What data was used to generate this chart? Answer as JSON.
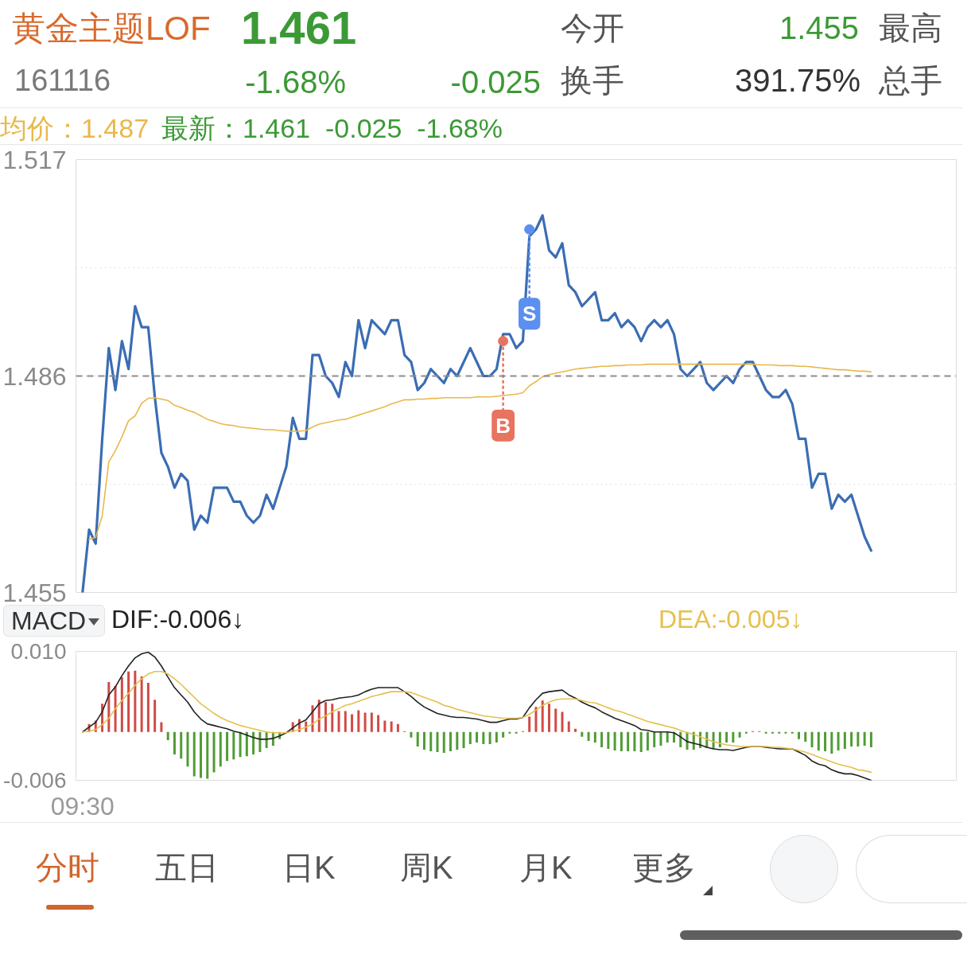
{
  "chart_data": [
    {
      "type": "line",
      "title": "黄金主题LOF",
      "subtitle": "161116",
      "categories": [
        null,
        null,
        null,
        null,
        null,
        null,
        null,
        null,
        null,
        null,
        null,
        null,
        null,
        null,
        null,
        null,
        null,
        null,
        null,
        null,
        null,
        null,
        null,
        null,
        null,
        null,
        null,
        null,
        null,
        null,
        null,
        null,
        null,
        null,
        null,
        null,
        null,
        null,
        null,
        null,
        null,
        null,
        null,
        null,
        null,
        null,
        null,
        null,
        null,
        null,
        null,
        null,
        null,
        null,
        null,
        null,
        null,
        null,
        null,
        null,
        null,
        null,
        null,
        null,
        null,
        null,
        null,
        null,
        null,
        null,
        null,
        null,
        null,
        null,
        null,
        null,
        null,
        null,
        null,
        null,
        null,
        null,
        null,
        null,
        null,
        null,
        null,
        null,
        null,
        null,
        null,
        null,
        null,
        null,
        null,
        null,
        null,
        null,
        null,
        null,
        null,
        null,
        null,
        null,
        null,
        null,
        null,
        null,
        null,
        null,
        null,
        null,
        null,
        null,
        null,
        null,
        null,
        null,
        null,
        null,
        null
      ],
      "series": [
        {
          "color": "#3b6db3",
          "values": [
            1.455,
            1.464,
            1.462,
            1.477,
            1.49,
            1.484,
            1.491,
            1.487,
            1.496,
            1.493,
            1.493,
            1.483,
            1.475,
            1.473,
            1.47,
            1.472,
            1.471,
            1.464,
            1.466,
            1.465,
            1.47,
            1.47,
            1.47,
            1.468,
            1.468,
            1.466,
            1.465,
            1.466,
            1.469,
            1.467,
            1.47,
            1.473,
            1.48,
            1.477,
            1.477,
            1.489,
            1.489,
            1.486,
            1.485,
            1.483,
            1.488,
            1.486,
            1.494,
            1.49,
            1.494,
            1.493,
            1.492,
            1.494,
            1.494,
            1.489,
            1.488,
            1.484,
            1.485,
            1.487,
            1.486,
            1.485,
            1.487,
            1.486,
            1.488,
            1.49,
            1.488,
            1.486,
            1.486,
            1.487,
            1.492,
            1.492,
            1.49,
            1.491,
            1.506,
            1.507,
            1.509,
            1.504,
            1.503,
            1.505,
            1.499,
            1.498,
            1.496,
            1.497,
            1.498,
            1.494,
            1.494,
            1.495,
            1.493,
            1.494,
            1.493,
            1.491,
            1.493,
            1.494,
            1.493,
            1.494,
            1.492,
            1.487,
            1.486,
            1.487,
            1.488,
            1.485,
            1.484,
            1.485,
            1.486,
            1.485,
            1.487,
            1.488,
            1.488,
            1.486,
            1.484,
            1.483,
            1.483,
            1.484,
            1.482,
            1.477,
            1.477,
            1.47,
            1.472,
            1.472,
            1.467,
            1.469,
            1.468,
            1.469,
            1.466,
            1.463,
            1.461
          ]
        },
        {
          "name": "均价：1.487",
          "color": "#e9b84b",
          "values": [
            null,
            1.4626,
            1.4629,
            1.466,
            1.4737,
            1.4753,
            1.4773,
            1.4796,
            1.4803,
            1.4821,
            1.4828,
            1.4829,
            1.4827,
            1.4825,
            1.4818,
            1.4815,
            1.4811,
            1.4808,
            1.4803,
            1.4798,
            1.4795,
            1.4792,
            1.479,
            1.4789,
            1.4787,
            1.4786,
            1.4785,
            1.4784,
            1.4783,
            1.4783,
            1.4782,
            1.4781,
            1.4781,
            1.4781,
            1.4782,
            1.4787,
            1.4791,
            1.4793,
            1.4795,
            1.4797,
            1.4798,
            1.4801,
            1.4804,
            1.4807,
            1.481,
            1.4813,
            1.4816,
            1.482,
            1.4823,
            1.4826,
            1.4826,
            1.4827,
            1.4827,
            1.4828,
            1.4828,
            1.4829,
            1.4829,
            1.4829,
            1.4829,
            1.4829,
            1.483,
            1.483,
            1.483,
            1.4831,
            1.4832,
            1.4833,
            1.4834,
            1.4836,
            1.4846,
            1.4852,
            1.4859,
            1.4862,
            1.4864,
            1.4866,
            1.4868,
            1.487,
            1.4871,
            1.4872,
            1.4873,
            1.4874,
            1.4874,
            1.4875,
            1.4875,
            1.4876,
            1.4876,
            1.4876,
            1.4877,
            1.4877,
            1.4877,
            1.4877,
            1.4877,
            1.4877,
            1.4877,
            1.4877,
            1.4877,
            1.4877,
            1.4877,
            1.4877,
            1.4877,
            1.4877,
            1.4877,
            1.4877,
            1.4877,
            1.4876,
            1.4876,
            1.4876,
            1.4875,
            1.4875,
            1.4875,
            1.4874,
            1.4874,
            1.4873,
            1.4872,
            1.4871,
            1.487,
            1.4869,
            1.4869,
            1.4868,
            1.4867,
            1.4867,
            1.4866
          ]
        },
        {
          "type": "scatter",
          "name": "B",
          "color": "#e8735f",
          "marker": "circle",
          "values": [
            null,
            null,
            null,
            null,
            null,
            null,
            null,
            null,
            null,
            null,
            null,
            null,
            null,
            null,
            null,
            null,
            null,
            null,
            null,
            null,
            null,
            null,
            null,
            null,
            null,
            null,
            null,
            null,
            null,
            null,
            null,
            null,
            null,
            null,
            null,
            null,
            null,
            null,
            null,
            null,
            null,
            null,
            null,
            null,
            null,
            null,
            null,
            null,
            null,
            null,
            null,
            null,
            null,
            null,
            null,
            null,
            null,
            null,
            null,
            null,
            null,
            null,
            null,
            null,
            1.491,
            null,
            null,
            null,
            null,
            null,
            null,
            null,
            null,
            null,
            null,
            null,
            null,
            null,
            null,
            null,
            null,
            null,
            null,
            null,
            null,
            null,
            null,
            null,
            null,
            null,
            null,
            null,
            null,
            null,
            null,
            null,
            null,
            null,
            null,
            null,
            null,
            null,
            null,
            null,
            null,
            null,
            null,
            null,
            null,
            null,
            null,
            null,
            null,
            null,
            null,
            null,
            null,
            null,
            null,
            null,
            null
          ]
        },
        {
          "type": "scatter",
          "name": "S",
          "color": "#5b8ff0",
          "marker": "circle",
          "values": [
            null,
            null,
            null,
            null,
            null,
            null,
            null,
            null,
            null,
            null,
            null,
            null,
            null,
            null,
            null,
            null,
            null,
            null,
            null,
            null,
            null,
            null,
            null,
            null,
            null,
            null,
            null,
            null,
            null,
            null,
            null,
            null,
            null,
            null,
            null,
            null,
            null,
            null,
            null,
            null,
            null,
            null,
            null,
            null,
            null,
            null,
            null,
            null,
            null,
            null,
            null,
            null,
            null,
            null,
            null,
            null,
            null,
            null,
            null,
            null,
            null,
            null,
            null,
            null,
            null,
            null,
            null,
            null,
            1.507,
            null,
            null,
            null,
            null,
            null,
            null,
            null,
            null,
            null,
            null,
            null,
            null,
            null,
            null,
            null,
            null,
            null,
            null,
            null,
            null,
            null,
            null,
            null,
            null,
            null,
            null,
            null,
            null,
            null,
            null,
            null,
            null,
            null,
            null,
            null,
            null,
            null,
            null,
            null,
            null,
            null,
            null,
            null,
            null,
            null,
            null,
            null,
            null,
            null,
            null,
            null,
            null
          ]
        }
      ],
      "ylim": [
        1.455,
        1.517
      ],
      "yticks": [
        1.517,
        {
          "value": 1.5015,
          "label": null
        },
        1.486,
        {
          "value": 1.4705,
          "label": null
        },
        1.455
      ],
      "grid": "y",
      "ref_lines": [
        {
          "axis": "y",
          "value": 1.486,
          "color": "#8c8c8c",
          "line_style": "dashed"
        }
      ],
      "legend": "top",
      "tick_labels": "y",
      "annotations": [
        "1.461",
        "-1.68%",
        "-0.025",
        "今开",
        "1.455",
        "最高",
        "换手",
        "391.75%",
        "总手",
        "最新：1.461  -0.025  -1.68%"
      ]
    },
    {
      "type": "bar",
      "title": "MACD",
      "categories": [
        "09:30",
        null,
        null,
        null,
        null,
        null,
        null,
        null,
        null,
        null,
        null,
        null,
        null,
        null,
        null,
        null,
        null,
        null,
        null,
        null,
        null,
        null,
        null,
        null,
        null,
        null,
        null,
        null,
        null,
        null,
        null,
        null,
        null,
        null,
        null,
        null,
        null,
        null,
        null,
        null,
        null,
        null,
        null,
        null,
        null,
        null,
        null,
        null,
        null,
        null,
        null,
        null,
        null,
        null,
        null,
        null,
        null,
        null,
        null,
        null,
        null,
        null,
        null,
        null,
        null,
        null,
        null,
        null,
        null,
        null,
        null,
        null,
        null,
        null,
        null,
        null,
        null,
        null,
        null,
        null,
        null,
        null,
        null,
        null,
        null,
        null,
        null,
        null,
        null,
        null,
        null,
        null,
        null,
        null,
        null,
        null,
        null,
        null,
        null,
        null,
        null,
        null,
        null,
        null,
        null,
        null,
        null,
        null,
        null,
        null,
        null,
        null,
        null,
        null,
        null,
        null,
        null,
        null,
        null,
        null,
        null
      ],
      "series": [
        {
          "colors": [
            "#d04a45",
            "#d04a45",
            "#d04a45",
            "#d04a45",
            "#d04a45",
            "#d04a45",
            "#d04a45",
            "#d04a45",
            "#d04a45",
            "#d04a45",
            "#d04a45",
            "#d04a45",
            "#d04a45",
            "#4f9c34",
            "#4f9c34",
            "#4f9c34",
            "#4f9c34",
            "#4f9c34",
            "#4f9c34",
            "#4f9c34",
            "#4f9c34",
            "#4f9c34",
            "#4f9c34",
            "#4f9c34",
            "#4f9c34",
            "#4f9c34",
            "#4f9c34",
            "#4f9c34",
            "#4f9c34",
            "#4f9c34",
            "#4f9c34",
            "#d04a45",
            "#d04a45",
            "#d04a45",
            "#d04a45",
            "#d04a45",
            "#d04a45",
            "#d04a45",
            "#d04a45",
            "#d04a45",
            "#d04a45",
            "#d04a45",
            "#d04a45",
            "#d04a45",
            "#d04a45",
            "#d04a45",
            "#d04a45",
            "#d04a45",
            "#d04a45",
            "#d04a45",
            "#4f9c34",
            "#4f9c34",
            "#4f9c34",
            "#4f9c34",
            "#4f9c34",
            "#4f9c34",
            "#4f9c34",
            "#4f9c34",
            "#4f9c34",
            "#4f9c34",
            "#4f9c34",
            "#4f9c34",
            "#4f9c34",
            "#4f9c34",
            "#4f9c34",
            "#4f9c34",
            "#4f9c34",
            "#d04a45",
            "#d04a45",
            "#d04a45",
            "#d04a45",
            "#d04a45",
            "#d04a45",
            "#d04a45",
            "#d04a45",
            "#d04a45",
            "#4f9c34",
            "#4f9c34",
            "#4f9c34",
            "#4f9c34",
            "#4f9c34",
            "#4f9c34",
            "#4f9c34",
            "#4f9c34",
            "#4f9c34",
            "#4f9c34",
            "#4f9c34",
            "#4f9c34",
            "#4f9c34",
            "#4f9c34",
            "#4f9c34",
            "#4f9c34",
            "#4f9c34",
            "#4f9c34",
            "#4f9c34",
            "#4f9c34",
            "#4f9c34",
            "#4f9c34",
            "#4f9c34",
            "#4f9c34",
            "#4f9c34",
            "#4f9c34",
            "#d04a45",
            "#d04a45",
            "#4f9c34",
            "#4f9c34",
            "#4f9c34",
            "#4f9c34",
            "#4f9c34",
            "#4f9c34",
            "#4f9c34",
            "#4f9c34",
            "#4f9c34",
            "#4f9c34",
            "#4f9c34",
            "#4f9c34",
            "#4f9c34",
            "#4f9c34",
            "#4f9c34",
            "#4f9c34",
            "#4f9c34"
          ],
          "values": [
            null,
            0.001,
            0.0014,
            0.0035,
            0.0062,
            0.0057,
            0.0068,
            0.0075,
            0.0076,
            0.0069,
            0.0061,
            0.004,
            0.0012,
            -0.001,
            -0.0028,
            -0.0033,
            -0.0043,
            -0.0055,
            -0.0057,
            -0.0058,
            -0.005,
            -0.0043,
            -0.0036,
            -0.0034,
            -0.0031,
            -0.003,
            -0.0028,
            -0.0025,
            -0.002,
            -0.0017,
            -0.0009,
            null,
            0.0012,
            0.0016,
            0.0013,
            0.0033,
            0.004,
            0.0037,
            0.0035,
            0.0026,
            0.0026,
            0.0022,
            0.0027,
            0.0024,
            0.0024,
            0.0021,
            0.0014,
            0.0013,
            0.001,
            0.0001,
            -0.0007,
            -0.0018,
            -0.0022,
            -0.0024,
            -0.0025,
            -0.0026,
            -0.0024,
            -0.0022,
            -0.002,
            -0.0015,
            -0.0013,
            -0.0015,
            -0.0015,
            -0.0013,
            -0.0007,
            -0.0002,
            -0.0002,
            0.0001,
            0.0019,
            0.0031,
            0.0039,
            0.0035,
            0.0029,
            0.0025,
            0.0013,
            0.0004,
            -0.0006,
            -0.0011,
            -0.0013,
            -0.0019,
            -0.0021,
            -0.0023,
            -0.0024,
            -0.0024,
            -0.0024,
            -0.0025,
            -0.0023,
            -0.0019,
            -0.0017,
            -0.0013,
            -0.0013,
            -0.0019,
            -0.0022,
            -0.0022,
            -0.002,
            -0.002,
            -0.0021,
            -0.0019,
            -0.0013,
            -0.0013,
            -0.0007,
            -0.0002,
            0.0001,
            0.0001,
            -0.0002,
            -0.0002,
            -0.0002,
            -0.0002,
            -0.0002,
            -0.0009,
            -0.0012,
            -0.0019,
            -0.0023,
            -0.0024,
            -0.0027,
            -0.0023,
            -0.0021,
            -0.0018,
            -0.0018,
            -0.0017,
            -0.0019
          ]
        },
        {
          "type": "line",
          "name": "DIF:-0.006↓",
          "color": "#222222",
          "values": [
            0.0,
            0.0006,
            0.0012,
            0.0025,
            0.0046,
            0.0056,
            0.007,
            0.0082,
            0.0092,
            0.0097,
            0.0099,
            0.0093,
            0.0082,
            0.0068,
            0.0055,
            0.0046,
            0.0037,
            0.0025,
            0.0016,
            0.001,
            0.0008,
            0.0006,
            0.0004,
            0.0001,
            -0.0001,
            -0.0004,
            -0.0007,
            -0.0009,
            -0.0009,
            -0.0008,
            -0.0005,
            -0.0001,
            0.0005,
            0.0011,
            0.0015,
            0.0025,
            0.0035,
            0.0039,
            0.004,
            0.0042,
            0.0043,
            0.0044,
            0.0046,
            0.005,
            0.0053,
            0.0055,
            0.0055,
            0.0055,
            0.0055,
            0.005,
            0.0044,
            0.0037,
            0.0031,
            0.0027,
            0.0023,
            0.0021,
            0.0019,
            0.0018,
            0.0018,
            0.0017,
            0.0016,
            0.0014,
            0.0012,
            0.0012,
            0.0014,
            0.0016,
            0.0016,
            0.0018,
            0.003,
            0.004,
            0.0048,
            0.005,
            0.0051,
            0.0052,
            0.0046,
            0.0042,
            0.0037,
            0.0033,
            0.003,
            0.0025,
            0.0021,
            0.0017,
            0.0014,
            0.0011,
            0.0008,
            0.0003,
            0.0002,
            0.0,
            0.0,
            0.0,
            -0.0001,
            -0.0006,
            -0.0012,
            -0.0014,
            -0.0016,
            -0.0019,
            -0.0021,
            -0.0022,
            -0.0022,
            -0.0023,
            -0.0021,
            -0.0019,
            -0.0018,
            -0.0018,
            -0.0019,
            -0.002,
            -0.0021,
            -0.0021,
            -0.0021,
            -0.0025,
            -0.0029,
            -0.0036,
            -0.004,
            -0.0042,
            -0.0047,
            -0.005,
            -0.0052,
            -0.0052,
            -0.0054,
            -0.0057,
            -0.006
          ]
        },
        {
          "type": "line",
          "name": "DEA:-0.005↓",
          "color": "#e6c04e",
          "values": [
            0.0,
            0.0001,
            0.0003,
            0.0009,
            0.0017,
            0.0029,
            0.0039,
            0.0048,
            0.0058,
            0.0066,
            0.0072,
            0.0075,
            0.0075,
            0.0072,
            0.0066,
            0.0059,
            0.0051,
            0.0043,
            0.0035,
            0.0029,
            0.0023,
            0.0018,
            0.0014,
            0.0011,
            0.0008,
            0.0006,
            0.0004,
            0.0002,
            0.0,
            -0.0001,
            -0.0001,
            -0.0001,
            0.0001,
            0.0003,
            0.0006,
            0.001,
            0.0016,
            0.002,
            0.0025,
            0.0029,
            0.0033,
            0.0035,
            0.0038,
            0.0041,
            0.0044,
            0.0046,
            0.0048,
            0.005,
            0.005,
            0.005,
            0.0049,
            0.0046,
            0.0043,
            0.004,
            0.0037,
            0.0033,
            0.0031,
            0.0028,
            0.0026,
            0.0024,
            0.0022,
            0.002,
            0.0019,
            0.0018,
            0.0017,
            0.0017,
            0.0017,
            0.0018,
            0.0022,
            0.0027,
            0.0033,
            0.0037,
            0.004,
            0.0041,
            0.0041,
            0.0041,
            0.0039,
            0.0037,
            0.0036,
            0.0033,
            0.003,
            0.0027,
            0.0025,
            0.0022,
            0.0019,
            0.0016,
            0.0013,
            0.0011,
            0.0009,
            0.0007,
            0.0005,
            0.0002,
            -0.0001,
            -0.0003,
            -0.0006,
            -0.0009,
            -0.0012,
            -0.0014,
            -0.0016,
            -0.0017,
            -0.0018,
            -0.0018,
            -0.0018,
            -0.0018,
            -0.0018,
            -0.0019,
            -0.0019,
            -0.002,
            -0.0021,
            -0.0023,
            -0.0025,
            -0.0028,
            -0.0031,
            -0.0034,
            -0.0037,
            -0.004,
            -0.0042,
            -0.0044,
            -0.0047,
            -0.0048,
            -0.005
          ]
        }
      ],
      "ylim": [
        -0.006,
        0.01
      ],
      "yticks": [
        {
          "value": 0.01,
          "label": "0.010"
        },
        -0.006
      ],
      "legend": "top",
      "annotations": [
        "分时",
        "五日",
        "日K",
        "周K",
        "月K",
        "更多"
      ]
    }
  ]
}
